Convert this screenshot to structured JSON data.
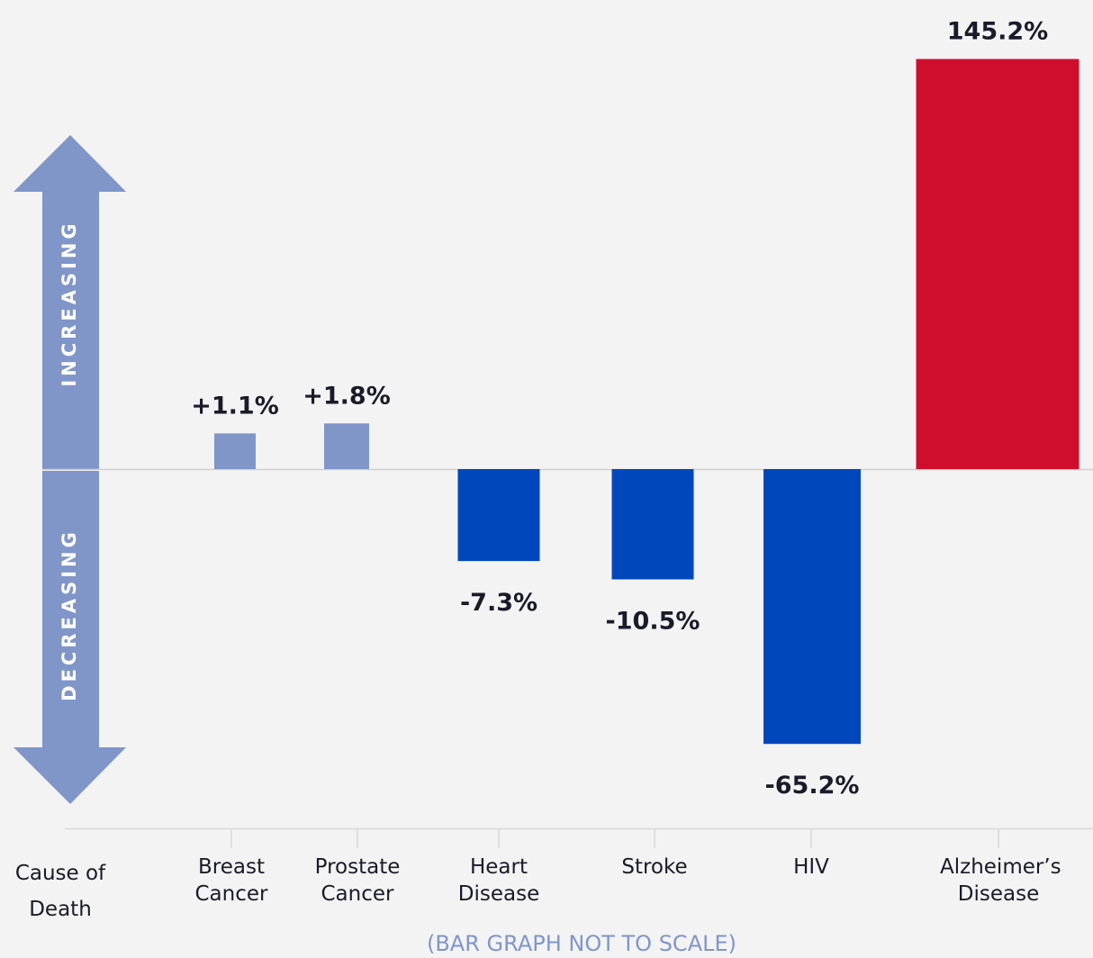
{
  "chart_data": {
    "type": "bar",
    "x_label": "Cause of Death",
    "categories": [
      "Breast Cancer",
      "Prostate Cancer",
      "Heart Disease",
      "Stroke",
      "HIV",
      "Alzheimer’s Disease"
    ],
    "values": [
      1.1,
      1.8,
      -7.3,
      -10.5,
      -65.2,
      145.2
    ],
    "value_labels": [
      "+1.1%",
      "+1.8%",
      "-7.3%",
      "-10.5%",
      "-65.2%",
      "145.2%"
    ],
    "colors": [
      "#8096c9",
      "#8096c9",
      "#0047bb",
      "#0047bb",
      "#0047bb",
      "#cf0e2e"
    ],
    "up_label": "INCREASING",
    "down_label": "DECREASING",
    "note": "(BAR GRAPH NOT TO SCALE)"
  }
}
